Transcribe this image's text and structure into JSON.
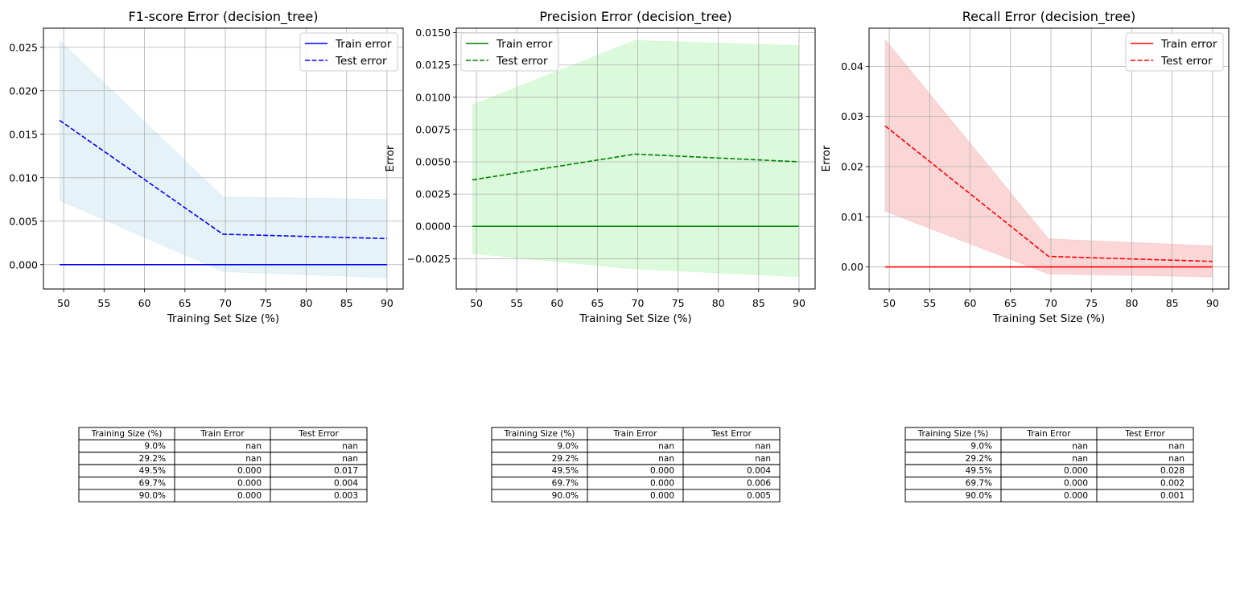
{
  "chart_data": [
    {
      "type": "line",
      "title": "F1-score Error (decision_tree)",
      "xlabel": "Training Set Size (%)",
      "ylabel": "",
      "xlim": [
        47.5,
        92.0
      ],
      "ylim": [
        -0.0028,
        0.0272
      ],
      "xticks": [
        50,
        55,
        60,
        65,
        70,
        75,
        80,
        85,
        90
      ],
      "yticks": [
        0.0,
        0.005,
        0.01,
        0.015,
        0.02,
        0.025
      ],
      "ytick_labels": [
        "0.000",
        "0.005",
        "0.010",
        "0.015",
        "0.020",
        "0.025"
      ],
      "grid": true,
      "legend_position": "upper right",
      "x": [
        49.5,
        69.7,
        90.0
      ],
      "series": [
        {
          "name": "Train error",
          "style": "solid",
          "color": "#0000ff",
          "values": [
            0.0,
            0.0,
            0.0
          ],
          "band_lower": [
            0.0,
            0.0,
            0.0
          ],
          "band_upper": [
            0.0,
            0.0,
            0.0
          ]
        },
        {
          "name": "Test error",
          "style": "dashed",
          "color": "#0000ff",
          "values": [
            0.0166,
            0.0035,
            0.003
          ],
          "band_lower": [
            0.0074,
            -0.0008,
            -0.0015
          ],
          "band_upper": [
            0.0258,
            0.0078,
            0.0075
          ]
        }
      ],
      "band_color": "#add8e6",
      "table": {
        "headers": [
          "Training Size (%)",
          "Train Error",
          "Test Error"
        ],
        "rows": [
          [
            "9.0%",
            "nan",
            "nan"
          ],
          [
            "29.2%",
            "nan",
            "nan"
          ],
          [
            "49.5%",
            "0.000",
            "0.017"
          ],
          [
            "69.7%",
            "0.000",
            "0.004"
          ],
          [
            "90.0%",
            "0.000",
            "0.003"
          ]
        ]
      }
    },
    {
      "type": "line",
      "title": "Precision Error (decision_tree)",
      "xlabel": "Training Set Size (%)",
      "ylabel": "Error",
      "xlim": [
        47.5,
        92.0
      ],
      "ylim": [
        -0.00485,
        0.01535
      ],
      "xticks": [
        50,
        55,
        60,
        65,
        70,
        75,
        80,
        85,
        90
      ],
      "yticks": [
        -0.0025,
        0.0,
        0.0025,
        0.005,
        0.0075,
        0.01,
        0.0125,
        0.015
      ],
      "ytick_labels": [
        "−0.0025",
        "0.0000",
        "0.0025",
        "0.0050",
        "0.0075",
        "0.0100",
        "0.0125",
        "0.0150"
      ],
      "grid": true,
      "legend_position": "upper left",
      "x": [
        49.5,
        69.7,
        90.0
      ],
      "series": [
        {
          "name": "Train error",
          "style": "solid",
          "color": "#008000",
          "values": [
            0.0,
            0.0,
            0.0
          ],
          "band_lower": [
            0.0,
            0.0,
            0.0
          ],
          "band_upper": [
            0.0,
            0.0,
            0.0
          ]
        },
        {
          "name": "Test error",
          "style": "dashed",
          "color": "#008000",
          "values": [
            0.0036,
            0.0056,
            0.005
          ],
          "band_lower": [
            -0.0021,
            -0.0033,
            -0.0039
          ],
          "band_upper": [
            0.0094,
            0.0144,
            0.014
          ]
        }
      ],
      "band_color": "#90ee90",
      "table": {
        "headers": [
          "Training Size (%)",
          "Train Error",
          "Test Error"
        ],
        "rows": [
          [
            "9.0%",
            "nan",
            "nan"
          ],
          [
            "29.2%",
            "nan",
            "nan"
          ],
          [
            "49.5%",
            "0.000",
            "0.004"
          ],
          [
            "69.7%",
            "0.000",
            "0.006"
          ],
          [
            "90.0%",
            "0.000",
            "0.005"
          ]
        ]
      }
    },
    {
      "type": "line",
      "title": "Recall Error (decision_tree)",
      "xlabel": "Training Set Size (%)",
      "ylabel": "Error",
      "xlim": [
        47.5,
        92.0
      ],
      "ylim": [
        -0.0044,
        0.0476
      ],
      "xticks": [
        50,
        55,
        60,
        65,
        70,
        75,
        80,
        85,
        90
      ],
      "yticks": [
        0.0,
        0.01,
        0.02,
        0.03,
        0.04
      ],
      "ytick_labels": [
        "0.00",
        "0.01",
        "0.02",
        "0.03",
        "0.04"
      ],
      "grid": true,
      "legend_position": "upper right",
      "x": [
        49.5,
        69.7,
        90.0
      ],
      "series": [
        {
          "name": "Train error",
          "style": "solid",
          "color": "#ff0000",
          "values": [
            0.0,
            0.0,
            0.0
          ],
          "band_lower": [
            0.0,
            0.0,
            0.0
          ],
          "band_upper": [
            0.0,
            0.0,
            0.0
          ]
        },
        {
          "name": "Test error",
          "style": "dashed",
          "color": "#ff0000",
          "values": [
            0.0281,
            0.0021,
            0.0011
          ],
          "band_lower": [
            0.0111,
            -0.0014,
            -0.002
          ],
          "band_upper": [
            0.0453,
            0.0056,
            0.0042
          ]
        }
      ],
      "band_color": "#f08080",
      "table": {
        "headers": [
          "Training Size (%)",
          "Train Error",
          "Test Error"
        ],
        "rows": [
          [
            "9.0%",
            "nan",
            "nan"
          ],
          [
            "29.2%",
            "nan",
            "nan"
          ],
          [
            "49.5%",
            "0.000",
            "0.028"
          ],
          [
            "69.7%",
            "0.000",
            "0.002"
          ],
          [
            "90.0%",
            "0.000",
            "0.001"
          ]
        ]
      }
    }
  ]
}
